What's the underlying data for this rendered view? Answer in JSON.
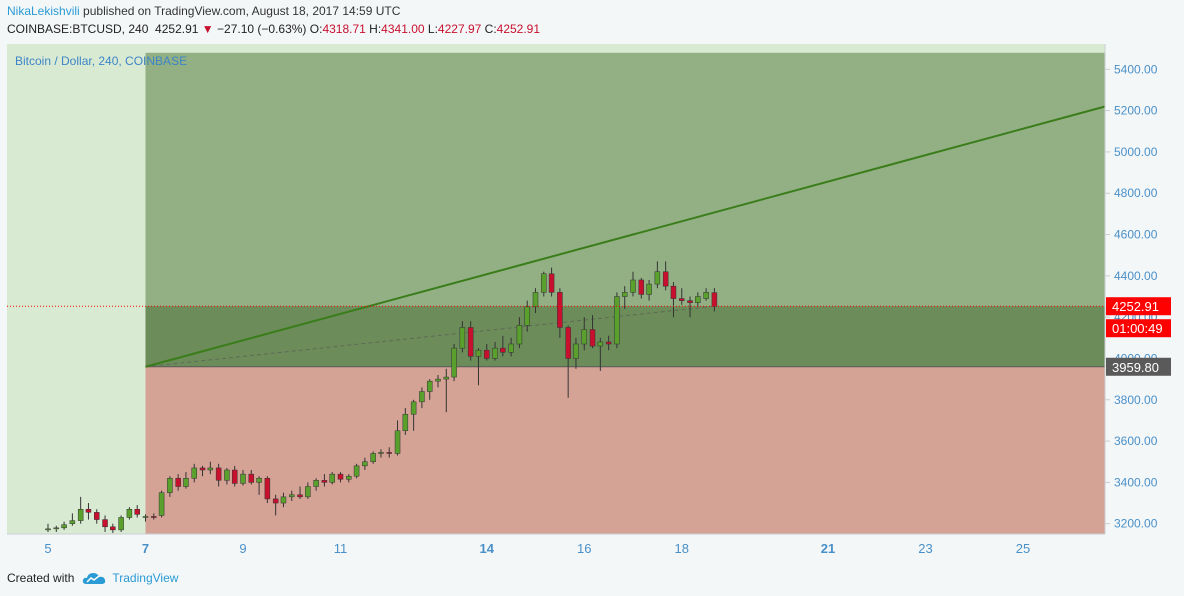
{
  "header": {
    "author": "NikaLekishvili",
    "published_text": "published on TradingView.com, August 18, 2017 14:59 UTC",
    "symbol": "COINBASE:BTCUSD, 240",
    "last": "4252.91",
    "change_arrow": "▼",
    "change": "−27.10 (−0.63%)",
    "o_label": "O:",
    "o_value": "4318.71",
    "h_label": "H:",
    "h_value": "4341.00",
    "l_label": "L:",
    "l_value": "4227.97",
    "c_label": "C:",
    "c_value": "4252.91"
  },
  "footer": {
    "created_with": "Created with",
    "brand": "TradingView",
    "logo_icon": "tradingview-cloud-icon"
  },
  "colors": {
    "up": "#5aa02c",
    "down": "#c8102e",
    "profit_zone": "#93b085",
    "loss_zone": "#d5a396",
    "position_band": "#6c8c5a",
    "left_area": "#d9ead3",
    "trend_line": "#3a7d1a",
    "price_tag": "#ff0000",
    "entry_tag": "#5a5a5a"
  },
  "chart_data": {
    "type": "candlestick",
    "title": "Bitcoin / Dollar, 240, COINBASE",
    "ylim": [
      3150,
      5480
    ],
    "y_ticks": [
      3200,
      3400,
      3600,
      3800,
      4000,
      4200,
      4400,
      4600,
      4800,
      5000,
      5200,
      5400
    ],
    "y_tick_labels": [
      "3200.00",
      "3400.00",
      "3600.00",
      "3800.00",
      "4000.00",
      "4200.00",
      "4400.00",
      "4600.00",
      "4800.00",
      "5000.00",
      "5200.00",
      "5400.00"
    ],
    "x_ticks": [
      {
        "label": "5",
        "day": 5,
        "bold": false
      },
      {
        "label": "7",
        "day": 7,
        "bold": true
      },
      {
        "label": "9",
        "day": 9,
        "bold": false
      },
      {
        "label": "11",
        "day": 11,
        "bold": false
      },
      {
        "label": "14",
        "day": 14,
        "bold": true
      },
      {
        "label": "16",
        "day": 16,
        "bold": false
      },
      {
        "label": "18",
        "day": 18,
        "bold": false
      },
      {
        "label": "21",
        "day": 21,
        "bold": true
      },
      {
        "label": "23",
        "day": 23,
        "bold": false
      },
      {
        "label": "25",
        "day": 25,
        "bold": false
      }
    ],
    "last_price": 4252.91,
    "last_price_label": "4252.91",
    "countdown_label": "01:00:49",
    "position": {
      "start_day": 7.0,
      "end_day": 26.75,
      "entry": 3959.8,
      "entry_label": "3959.80",
      "target": 5480,
      "stop": 3150,
      "band_top": 4252.91
    },
    "trendline": {
      "from": [
        7.0,
        3959.8
      ],
      "to": [
        26.75,
        5220
      ]
    },
    "candles": [
      {
        "t": 5.0,
        "o": 3170,
        "h": 3200,
        "l": 3160,
        "c": 3175
      },
      {
        "t": 5.17,
        "o": 3175,
        "h": 3190,
        "l": 3160,
        "c": 3180
      },
      {
        "t": 5.33,
        "o": 3180,
        "h": 3210,
        "l": 3170,
        "c": 3195
      },
      {
        "t": 5.5,
        "o": 3200,
        "h": 3250,
        "l": 3190,
        "c": 3215
      },
      {
        "t": 5.67,
        "o": 3215,
        "h": 3330,
        "l": 3200,
        "c": 3270
      },
      {
        "t": 5.83,
        "o": 3270,
        "h": 3300,
        "l": 3220,
        "c": 3255
      },
      {
        "t": 6.0,
        "o": 3255,
        "h": 3270,
        "l": 3200,
        "c": 3220
      },
      {
        "t": 6.17,
        "o": 3220,
        "h": 3240,
        "l": 3160,
        "c": 3185
      },
      {
        "t": 6.33,
        "o": 3185,
        "h": 3200,
        "l": 3155,
        "c": 3170
      },
      {
        "t": 6.5,
        "o": 3170,
        "h": 3240,
        "l": 3160,
        "c": 3230
      },
      {
        "t": 6.67,
        "o": 3230,
        "h": 3280,
        "l": 3220,
        "c": 3270
      },
      {
        "t": 6.83,
        "o": 3270,
        "h": 3290,
        "l": 3230,
        "c": 3245
      },
      {
        "t": 7.0,
        "o": 3230,
        "h": 3245,
        "l": 3210,
        "c": 3235
      },
      {
        "t": 7.17,
        "o": 3235,
        "h": 3250,
        "l": 3220,
        "c": 3230
      },
      {
        "t": 7.33,
        "o": 3240,
        "h": 3360,
        "l": 3230,
        "c": 3350
      },
      {
        "t": 7.5,
        "o": 3350,
        "h": 3430,
        "l": 3330,
        "c": 3420
      },
      {
        "t": 7.67,
        "o": 3420,
        "h": 3440,
        "l": 3360,
        "c": 3380
      },
      {
        "t": 7.83,
        "o": 3380,
        "h": 3450,
        "l": 3370,
        "c": 3420
      },
      {
        "t": 8.0,
        "o": 3420,
        "h": 3490,
        "l": 3400,
        "c": 3470
      },
      {
        "t": 8.17,
        "o": 3470,
        "h": 3480,
        "l": 3430,
        "c": 3460
      },
      {
        "t": 8.33,
        "o": 3460,
        "h": 3500,
        "l": 3440,
        "c": 3470
      },
      {
        "t": 8.5,
        "o": 3470,
        "h": 3490,
        "l": 3380,
        "c": 3410
      },
      {
        "t": 8.67,
        "o": 3410,
        "h": 3470,
        "l": 3390,
        "c": 3460
      },
      {
        "t": 8.83,
        "o": 3460,
        "h": 3480,
        "l": 3380,
        "c": 3395
      },
      {
        "t": 9.0,
        "o": 3395,
        "h": 3460,
        "l": 3385,
        "c": 3440
      },
      {
        "t": 9.17,
        "o": 3440,
        "h": 3460,
        "l": 3390,
        "c": 3400
      },
      {
        "t": 9.33,
        "o": 3400,
        "h": 3430,
        "l": 3340,
        "c": 3420
      },
      {
        "t": 9.5,
        "o": 3420,
        "h": 3430,
        "l": 3300,
        "c": 3320
      },
      {
        "t": 9.67,
        "o": 3320,
        "h": 3340,
        "l": 3240,
        "c": 3300
      },
      {
        "t": 9.83,
        "o": 3300,
        "h": 3350,
        "l": 3280,
        "c": 3330
      },
      {
        "t": 10.0,
        "o": 3330,
        "h": 3360,
        "l": 3310,
        "c": 3340
      },
      {
        "t": 10.17,
        "o": 3340,
        "h": 3380,
        "l": 3320,
        "c": 3330
      },
      {
        "t": 10.33,
        "o": 3330,
        "h": 3400,
        "l": 3320,
        "c": 3380
      },
      {
        "t": 10.5,
        "o": 3380,
        "h": 3420,
        "l": 3360,
        "c": 3410
      },
      {
        "t": 10.67,
        "o": 3410,
        "h": 3440,
        "l": 3380,
        "c": 3400
      },
      {
        "t": 10.83,
        "o": 3400,
        "h": 3450,
        "l": 3390,
        "c": 3440
      },
      {
        "t": 11.0,
        "o": 3440,
        "h": 3450,
        "l": 3400,
        "c": 3415
      },
      {
        "t": 11.17,
        "o": 3415,
        "h": 3440,
        "l": 3400,
        "c": 3430
      },
      {
        "t": 11.33,
        "o": 3430,
        "h": 3490,
        "l": 3420,
        "c": 3480
      },
      {
        "t": 11.5,
        "o": 3480,
        "h": 3520,
        "l": 3460,
        "c": 3500
      },
      {
        "t": 11.67,
        "o": 3500,
        "h": 3550,
        "l": 3490,
        "c": 3540
      },
      {
        "t": 11.83,
        "o": 3540,
        "h": 3560,
        "l": 3520,
        "c": 3545
      },
      {
        "t": 12.0,
        "o": 3545,
        "h": 3570,
        "l": 3520,
        "c": 3540
      },
      {
        "t": 12.17,
        "o": 3540,
        "h": 3700,
        "l": 3530,
        "c": 3650
      },
      {
        "t": 12.33,
        "o": 3650,
        "h": 3760,
        "l": 3630,
        "c": 3730
      },
      {
        "t": 12.5,
        "o": 3730,
        "h": 3800,
        "l": 3650,
        "c": 3790
      },
      {
        "t": 12.67,
        "o": 3790,
        "h": 3860,
        "l": 3760,
        "c": 3840
      },
      {
        "t": 12.83,
        "o": 3840,
        "h": 3900,
        "l": 3800,
        "c": 3890
      },
      {
        "t": 13.0,
        "o": 3890,
        "h": 3920,
        "l": 3860,
        "c": 3900
      },
      {
        "t": 13.17,
        "o": 3900,
        "h": 3950,
        "l": 3740,
        "c": 3910
      },
      {
        "t": 13.33,
        "o": 3910,
        "h": 4070,
        "l": 3890,
        "c": 4050
      },
      {
        "t": 13.5,
        "o": 4050,
        "h": 4180,
        "l": 4030,
        "c": 4150
      },
      {
        "t": 13.67,
        "o": 4150,
        "h": 4180,
        "l": 3990,
        "c": 4010
      },
      {
        "t": 13.83,
        "o": 4010,
        "h": 4050,
        "l": 3870,
        "c": 4040
      },
      {
        "t": 14.0,
        "o": 4040,
        "h": 4070,
        "l": 3990,
        "c": 4000
      },
      {
        "t": 14.17,
        "o": 4000,
        "h": 4080,
        "l": 3990,
        "c": 4050
      },
      {
        "t": 14.33,
        "o": 4050,
        "h": 4110,
        "l": 4010,
        "c": 4030
      },
      {
        "t": 14.5,
        "o": 4030,
        "h": 4100,
        "l": 4010,
        "c": 4070
      },
      {
        "t": 14.67,
        "o": 4070,
        "h": 4200,
        "l": 4050,
        "c": 4160
      },
      {
        "t": 14.83,
        "o": 4160,
        "h": 4280,
        "l": 4130,
        "c": 4250
      },
      {
        "t": 15.0,
        "o": 4250,
        "h": 4340,
        "l": 4220,
        "c": 4320
      },
      {
        "t": 15.17,
        "o": 4320,
        "h": 4420,
        "l": 4300,
        "c": 4410
      },
      {
        "t": 15.33,
        "o": 4410,
        "h": 4440,
        "l": 4300,
        "c": 4320
      },
      {
        "t": 15.5,
        "o": 4320,
        "h": 4340,
        "l": 4100,
        "c": 4150
      },
      {
        "t": 15.67,
        "o": 4150,
        "h": 4160,
        "l": 3810,
        "c": 4000
      },
      {
        "t": 15.83,
        "o": 4000,
        "h": 4100,
        "l": 3950,
        "c": 4070
      },
      {
        "t": 16.0,
        "o": 4070,
        "h": 4200,
        "l": 4040,
        "c": 4140
      },
      {
        "t": 16.17,
        "o": 4140,
        "h": 4210,
        "l": 4050,
        "c": 4060
      },
      {
        "t": 16.33,
        "o": 4060,
        "h": 4100,
        "l": 3940,
        "c": 4080
      },
      {
        "t": 16.5,
        "o": 4080,
        "h": 4110,
        "l": 4040,
        "c": 4070
      },
      {
        "t": 16.67,
        "o": 4070,
        "h": 4320,
        "l": 4050,
        "c": 4300
      },
      {
        "t": 16.83,
        "o": 4300,
        "h": 4350,
        "l": 4240,
        "c": 4320
      },
      {
        "t": 17.0,
        "o": 4320,
        "h": 4420,
        "l": 4300,
        "c": 4380
      },
      {
        "t": 17.17,
        "o": 4380,
        "h": 4390,
        "l": 4290,
        "c": 4310
      },
      {
        "t": 17.33,
        "o": 4310,
        "h": 4380,
        "l": 4280,
        "c": 4360
      },
      {
        "t": 17.5,
        "o": 4360,
        "h": 4470,
        "l": 4340,
        "c": 4420
      },
      {
        "t": 17.67,
        "o": 4420,
        "h": 4470,
        "l": 4330,
        "c": 4350
      },
      {
        "t": 17.83,
        "o": 4350,
        "h": 4370,
        "l": 4200,
        "c": 4290
      },
      {
        "t": 18.0,
        "o": 4290,
        "h": 4340,
        "l": 4260,
        "c": 4280
      },
      {
        "t": 18.17,
        "o": 4280,
        "h": 4300,
        "l": 4200,
        "c": 4270
      },
      {
        "t": 18.33,
        "o": 4270,
        "h": 4320,
        "l": 4250,
        "c": 4300
      },
      {
        "t": 18.5,
        "o": 4290,
        "h": 4340,
        "l": 4280,
        "c": 4320
      },
      {
        "t": 18.67,
        "o": 4318.71,
        "h": 4341,
        "l": 4227.97,
        "c": 4252.91
      }
    ]
  }
}
